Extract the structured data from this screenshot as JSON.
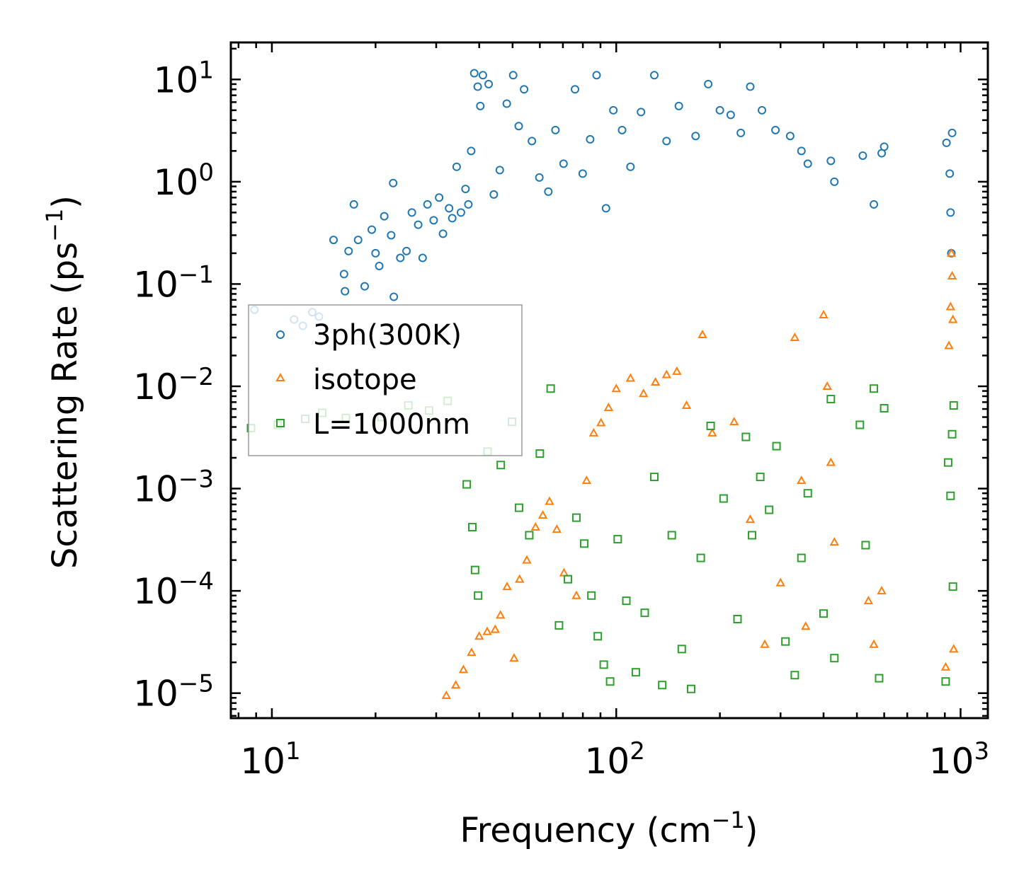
{
  "chart_data": {
    "type": "scatter",
    "xscale": "log",
    "yscale": "log",
    "xlabel": "Frequency (cm",
    "xlabel_sup": "−1",
    "xlabel_end": ")",
    "ylabel": "Scattering Rate (ps",
    "ylabel_sup": "−1",
    "ylabel_end": ")",
    "xlim": [
      7.6,
      1200
    ],
    "ylim": [
      5.7e-06,
      23
    ],
    "x_ticks": [
      {
        "value": 10,
        "base": "10",
        "exp": "1"
      },
      {
        "value": 100,
        "base": "10",
        "exp": "2"
      },
      {
        "value": 1000,
        "base": "10",
        "exp": "3"
      }
    ],
    "y_ticks": [
      {
        "value": 1e-05,
        "base": "10",
        "exp": "−5"
      },
      {
        "value": 0.0001,
        "base": "10",
        "exp": "−4"
      },
      {
        "value": 0.001,
        "base": "10",
        "exp": "−3"
      },
      {
        "value": 0.01,
        "base": "10",
        "exp": "−2"
      },
      {
        "value": 0.1,
        "base": "10",
        "exp": "−1"
      },
      {
        "value": 1,
        "base": "10",
        "exp": "0"
      },
      {
        "value": 10,
        "base": "10",
        "exp": "1"
      }
    ],
    "legend_position": "center-left",
    "series": [
      {
        "name": "3ph(300K)",
        "marker": "circle",
        "color": "#1f77b4",
        "points": [
          [
            8.9,
            0.056
          ],
          [
            11.6,
            0.045
          ],
          [
            12.3,
            0.039
          ],
          [
            13.1,
            0.053
          ],
          [
            13.7,
            0.048
          ],
          [
            15.1,
            0.27
          ],
          [
            16.2,
            0.125
          ],
          [
            16.3,
            0.085
          ],
          [
            16.7,
            0.21
          ],
          [
            17.3,
            0.6
          ],
          [
            17.8,
            0.27
          ],
          [
            18.6,
            0.095
          ],
          [
            19.5,
            0.34
          ],
          [
            20.0,
            0.2
          ],
          [
            20.5,
            0.15
          ],
          [
            21.2,
            0.46
          ],
          [
            22.2,
            0.3
          ],
          [
            22.5,
            0.97
          ],
          [
            22.6,
            0.075
          ],
          [
            23.6,
            0.18
          ],
          [
            24.6,
            0.21
          ],
          [
            25.5,
            0.5
          ],
          [
            26.6,
            0.38
          ],
          [
            27.4,
            0.18
          ],
          [
            28.3,
            0.6
          ],
          [
            29.5,
            0.42
          ],
          [
            30.6,
            0.7
          ],
          [
            31.4,
            0.31
          ],
          [
            32.7,
            0.55
          ],
          [
            33.4,
            0.44
          ],
          [
            34.4,
            1.4
          ],
          [
            35.4,
            0.5
          ],
          [
            36.5,
            0.85
          ],
          [
            37.2,
            0.6
          ],
          [
            37.9,
            2.0
          ],
          [
            38.7,
            11.5
          ],
          [
            39.6,
            8.5
          ],
          [
            40.3,
            5.5
          ],
          [
            41.0,
            11.0
          ],
          [
            42.6,
            9.0
          ],
          [
            44.1,
            0.75
          ],
          [
            45.9,
            1.3
          ],
          [
            48.1,
            5.8
          ],
          [
            50.2,
            11.0
          ],
          [
            52.1,
            3.5
          ],
          [
            54.0,
            8.0
          ],
          [
            56.9,
            2.5
          ],
          [
            59.8,
            1.1
          ],
          [
            63.5,
            0.8
          ],
          [
            66.6,
            3.2
          ],
          [
            70.3,
            1.5
          ],
          [
            75.9,
            8.0
          ],
          [
            79.9,
            1.2
          ],
          [
            84.0,
            2.6
          ],
          [
            87.7,
            11.0
          ],
          [
            93.4,
            0.55
          ],
          [
            98.1,
            5.0
          ],
          [
            104.0,
            3.2
          ],
          [
            110.0,
            1.4
          ],
          [
            118.0,
            4.8
          ],
          [
            129.0,
            11.0
          ],
          [
            140.0,
            2.5
          ],
          [
            152.0,
            5.5
          ],
          [
            170.0,
            2.8
          ],
          [
            185.0,
            9.0
          ],
          [
            200.0,
            5.0
          ],
          [
            215.0,
            4.5
          ],
          [
            230.0,
            3.0
          ],
          [
            245.0,
            8.5
          ],
          [
            265.0,
            5.0
          ],
          [
            290.0,
            3.2
          ],
          [
            320.0,
            2.8
          ],
          [
            345.0,
            2.0
          ],
          [
            360.0,
            1.5
          ],
          [
            420.0,
            1.6
          ],
          [
            430.0,
            1.0
          ],
          [
            520.0,
            1.8
          ],
          [
            560.0,
            0.6
          ],
          [
            590.0,
            1.9
          ],
          [
            600.0,
            2.2
          ],
          [
            910.0,
            2.4
          ],
          [
            930.0,
            1.2
          ],
          [
            935.0,
            0.5
          ],
          [
            940.0,
            0.2
          ],
          [
            945.0,
            3.0
          ]
        ]
      },
      {
        "name": "isotope",
        "marker": "triangle",
        "color": "#ff7f0e",
        "points": [
          [
            32.1,
            9.5e-06
          ],
          [
            34.2,
            1.2e-05
          ],
          [
            36.0,
            1.7e-05
          ],
          [
            38.0,
            2.5e-05
          ],
          [
            40.0,
            3.6e-05
          ],
          [
            42.2,
            4e-05
          ],
          [
            44.5,
            4.2e-05
          ],
          [
            46.1,
            5.8e-05
          ],
          [
            48.2,
            0.00011
          ],
          [
            50.5,
            2.2e-05
          ],
          [
            52.4,
            0.00013
          ],
          [
            55.0,
            0.0002
          ],
          [
            58.3,
            0.00042
          ],
          [
            61.2,
            0.00055
          ],
          [
            64.0,
            0.00075
          ],
          [
            67.2,
            0.0004
          ],
          [
            70.5,
            0.00015
          ],
          [
            76.6,
            9e-05
          ],
          [
            82.0,
            0.0012
          ],
          [
            86.0,
            0.0035
          ],
          [
            90.3,
            0.0044
          ],
          [
            95.0,
            0.0062
          ],
          [
            100.0,
            0.0095
          ],
          [
            110.0,
            0.012
          ],
          [
            120.0,
            0.0085
          ],
          [
            130.0,
            0.011
          ],
          [
            140.0,
            0.013
          ],
          [
            150.0,
            0.014
          ],
          [
            160.0,
            0.0065
          ],
          [
            178.0,
            0.032
          ],
          [
            190.0,
            0.0035
          ],
          [
            220.0,
            0.0045
          ],
          [
            245.0,
            0.0005
          ],
          [
            270.0,
            3e-05
          ],
          [
            300.0,
            0.00012
          ],
          [
            330.0,
            0.03
          ],
          [
            345.0,
            0.0012
          ],
          [
            355.0,
            4.5e-05
          ],
          [
            400.0,
            0.05
          ],
          [
            410.0,
            0.01
          ],
          [
            420.0,
            0.0018
          ],
          [
            430.0,
            0.0003
          ],
          [
            540.0,
            8e-05
          ],
          [
            560.0,
            3e-05
          ],
          [
            590.0,
            0.0001
          ],
          [
            905.0,
            1.8e-05
          ],
          [
            925.0,
            0.025
          ],
          [
            935.0,
            0.06
          ],
          [
            940.0,
            0.2
          ],
          [
            945.0,
            0.12
          ],
          [
            950.0,
            0.045
          ],
          [
            955.0,
            2.7e-05
          ]
        ]
      },
      {
        "name": "L=1000nm",
        "marker": "square",
        "color": "#2ca02c",
        "points": [
          [
            8.7,
            0.0039
          ],
          [
            10.4,
            0.0042
          ],
          [
            12.5,
            0.0048
          ],
          [
            14.0,
            0.0055
          ],
          [
            16.4,
            0.0049
          ],
          [
            20.8,
            0.005
          ],
          [
            24.9,
            0.0065
          ],
          [
            28.6,
            0.0058
          ],
          [
            32.4,
            0.0072
          ],
          [
            36.8,
            0.0011
          ],
          [
            38.2,
            0.00042
          ],
          [
            38.9,
            0.00016
          ],
          [
            39.7,
            9e-05
          ],
          [
            42.3,
            0.0023
          ],
          [
            46.2,
            0.0017
          ],
          [
            49.8,
            0.0045
          ],
          [
            52.2,
            0.00065
          ],
          [
            55.9,
            0.00035
          ],
          [
            60.0,
            0.0022
          ],
          [
            64.5,
            0.0095
          ],
          [
            68.2,
            4.6e-05
          ],
          [
            72.4,
            0.00013
          ],
          [
            76.6,
            0.00052
          ],
          [
            80.7,
            0.00029
          ],
          [
            84.7,
            9e-05
          ],
          [
            88.4,
            3.6e-05
          ],
          [
            92.0,
            1.9e-05
          ],
          [
            96.0,
            1.3e-05
          ],
          [
            101.0,
            0.00032
          ],
          [
            107.0,
            8e-05
          ],
          [
            114.0,
            1.6e-05
          ],
          [
            121.0,
            6.1e-05
          ],
          [
            129.0,
            0.0013
          ],
          [
            136.0,
            1.2e-05
          ],
          [
            145.0,
            0.00035
          ],
          [
            155.0,
            2.7e-05
          ],
          [
            165.0,
            1.1e-05
          ],
          [
            176.0,
            0.00021
          ],
          [
            188.0,
            0.0041
          ],
          [
            205.0,
            0.0008
          ],
          [
            225.0,
            5.3e-05
          ],
          [
            238.0,
            0.0032
          ],
          [
            248.0,
            0.00035
          ],
          [
            262.0,
            0.0013
          ],
          [
            278.0,
            0.00062
          ],
          [
            292.0,
            0.0026
          ],
          [
            310.0,
            3.2e-05
          ],
          [
            330.0,
            1.5e-05
          ],
          [
            345.0,
            0.00021
          ],
          [
            360.0,
            0.0009
          ],
          [
            400.0,
            6e-05
          ],
          [
            420.0,
            0.0075
          ],
          [
            430.0,
            2.2e-05
          ],
          [
            510.0,
            0.0042
          ],
          [
            530.0,
            0.00028
          ],
          [
            560.0,
            0.0095
          ],
          [
            580.0,
            1.4e-05
          ],
          [
            600.0,
            0.0061
          ],
          [
            905.0,
            1.3e-05
          ],
          [
            920.0,
            0.0018
          ],
          [
            935.0,
            0.00085
          ],
          [
            945.0,
            0.0034
          ],
          [
            950.0,
            0.00011
          ],
          [
            955.0,
            0.0065
          ]
        ]
      }
    ]
  }
}
